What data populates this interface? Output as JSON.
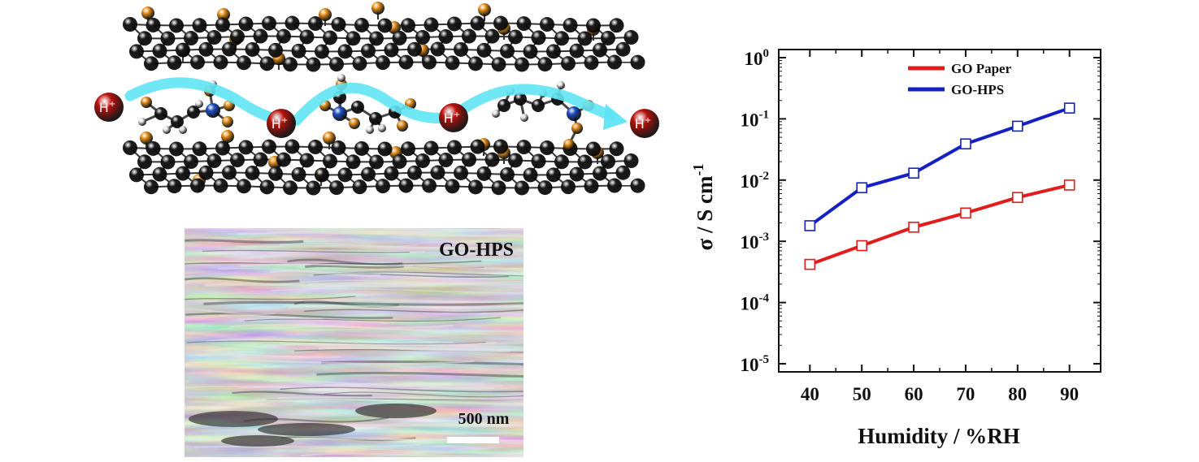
{
  "illustration": {
    "proton_labels": [
      {
        "base": "H",
        "sup": "+"
      },
      {
        "base": "H",
        "sup": "+"
      },
      {
        "base": "H",
        "sup": "+"
      },
      {
        "base": "H",
        "sup": "+"
      }
    ],
    "colors": {
      "carbon": "#1a1a1a",
      "oxygen": "#e8921f",
      "nitrogen": "#1f4fc8",
      "hydrogen": "#e6e6e6",
      "proton": "#b8120c",
      "pathway": "#5fe4f4"
    }
  },
  "sem": {
    "label": "GO-HPS",
    "scale_label": "500 nm"
  },
  "chart_data": {
    "type": "line",
    "xlabel": "Humidity / %RH",
    "ylabel": "σ / S cm",
    "ylabel_sup": "-1",
    "x": [
      40,
      50,
      60,
      70,
      80,
      90
    ],
    "x_ticks": [
      "40",
      "50",
      "60",
      "70",
      "80",
      "90"
    ],
    "xlim": [
      34,
      96
    ],
    "y_scale": "log",
    "ylim": [
      1e-05,
      1
    ],
    "y_ticks": [
      {
        "base": "10",
        "exp": "0",
        "value": 1
      },
      {
        "base": "10",
        "exp": "-1",
        "value": 0.1
      },
      {
        "base": "10",
        "exp": "-2",
        "value": 0.01
      },
      {
        "base": "10",
        "exp": "-3",
        "value": 0.001
      },
      {
        "base": "10",
        "exp": "-4",
        "value": 0.0001
      },
      {
        "base": "10",
        "exp": "-5",
        "value": 1e-05
      }
    ],
    "legend_position": "top-right",
    "series": [
      {
        "name": "GO Paper",
        "color": "#e21b1b",
        "marker": "open-square",
        "values": [
          0.00042,
          0.00085,
          0.0017,
          0.0029,
          0.0052,
          0.0083
        ]
      },
      {
        "name": "GO-HPS",
        "color": "#1520c4",
        "marker": "open-square",
        "values": [
          0.0018,
          0.0075,
          0.013,
          0.039,
          0.076,
          0.15
        ]
      }
    ]
  }
}
